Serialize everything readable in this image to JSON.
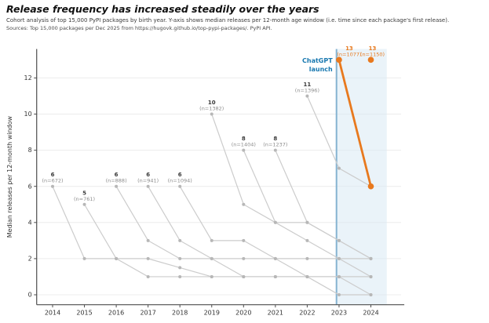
{
  "header": {
    "title": "Release frequency has increased steadily over the years",
    "subtitle": "Cohort analysis of top 15,000 PyPI packages by birth year. Y-axis shows median releases per 12-month age window (i.e. time since each package's first release).",
    "sources": "Sources: Top 15,000 packages per Dec 2025 from https://hugovk.github.io/top-pypi-packages/. PyPI API."
  },
  "chart_data": {
    "type": "line",
    "title": "Release frequency has increased steadily over the years",
    "ylabel": "Median releases per 12-month window",
    "xlabel": "",
    "x_ticks": [
      2014,
      2015,
      2016,
      2017,
      2018,
      2019,
      2020,
      2021,
      2022,
      2023,
      2024
    ],
    "y_ticks": [
      0,
      2,
      4,
      6,
      8,
      10,
      12
    ],
    "xlim": [
      2013.5,
      2025.05
    ],
    "ylim": [
      -0.55,
      13.6
    ],
    "grid": "horizontal-light",
    "legend": "none",
    "annotation": {
      "label_lines": [
        "ChatGPT",
        "launch"
      ],
      "x": 2022.92,
      "shade_to": 2024.5
    },
    "series": [
      {
        "birth_year": 2014,
        "n": 672,
        "value_label": "6",
        "n_label": "(n=672)",
        "color": "gray",
        "values": [
          6,
          2,
          2,
          1,
          1,
          1,
          1,
          1,
          1,
          1,
          0
        ]
      },
      {
        "birth_year": 2015,
        "n": 761,
        "value_label": "5",
        "n_label": "(n=761)",
        "color": "gray",
        "values": [
          5,
          2,
          2,
          1.5,
          1,
          1,
          1,
          1,
          1,
          1
        ]
      },
      {
        "birth_year": 2016,
        "n": 888,
        "value_label": "6",
        "n_label": "(n=888)",
        "color": "gray",
        "values": [
          6,
          3,
          2,
          2,
          2,
          2,
          2,
          2,
          2
        ]
      },
      {
        "birth_year": 2017,
        "n": 941,
        "value_label": "6",
        "n_label": "(n=941)",
        "color": "gray",
        "values": [
          6,
          3,
          2,
          1,
          1,
          1,
          1,
          1
        ]
      },
      {
        "birth_year": 2018,
        "n": 1094,
        "value_label": "6",
        "n_label": "(n=1094)",
        "color": "gray",
        "values": [
          6,
          3,
          3,
          2,
          1,
          0,
          0
        ]
      },
      {
        "birth_year": 2019,
        "n": 1382,
        "value_label": "10",
        "n_label": "(n=1382)",
        "color": "gray",
        "values": [
          10,
          5,
          4,
          3,
          2,
          1
        ]
      },
      {
        "birth_year": 2020,
        "n": 1404,
        "value_label": "8",
        "n_label": "(n=1404)",
        "color": "gray",
        "values": [
          8,
          4,
          4,
          3,
          2
        ]
      },
      {
        "birth_year": 2021,
        "n": 1237,
        "value_label": "8",
        "n_label": "(n=1237)",
        "color": "gray",
        "values": [
          8,
          4,
          3,
          2
        ]
      },
      {
        "birth_year": 2022,
        "n": 1396,
        "value_label": "11",
        "n_label": "(n=1396)",
        "color": "gray",
        "values": [
          11,
          7,
          6
        ]
      },
      {
        "birth_year": 2023,
        "n": 1077,
        "value_label": "13",
        "n_label": "(n=1077)",
        "color": "orange",
        "values": [
          13,
          6
        ],
        "label_dx": 13
      },
      {
        "birth_year": 2024,
        "n": 1150,
        "value_label": "13",
        "n_label": "(n=1150)",
        "color": "orange",
        "values": [
          13
        ],
        "label_dx": 2
      }
    ],
    "colors": {
      "gray_line": "#cccccc",
      "gray_marker": "#b7b7b7",
      "orange": "#e8791e",
      "annotation_blue": "#1878b0",
      "vline": "#85b3d1",
      "shade": "#d9e9f4",
      "grid": "#ececec",
      "spine": "#4d4d4d",
      "tick_label": "#333333",
      "value_label": "#3a3a3a",
      "n_label": "#8c8c8c"
    }
  }
}
